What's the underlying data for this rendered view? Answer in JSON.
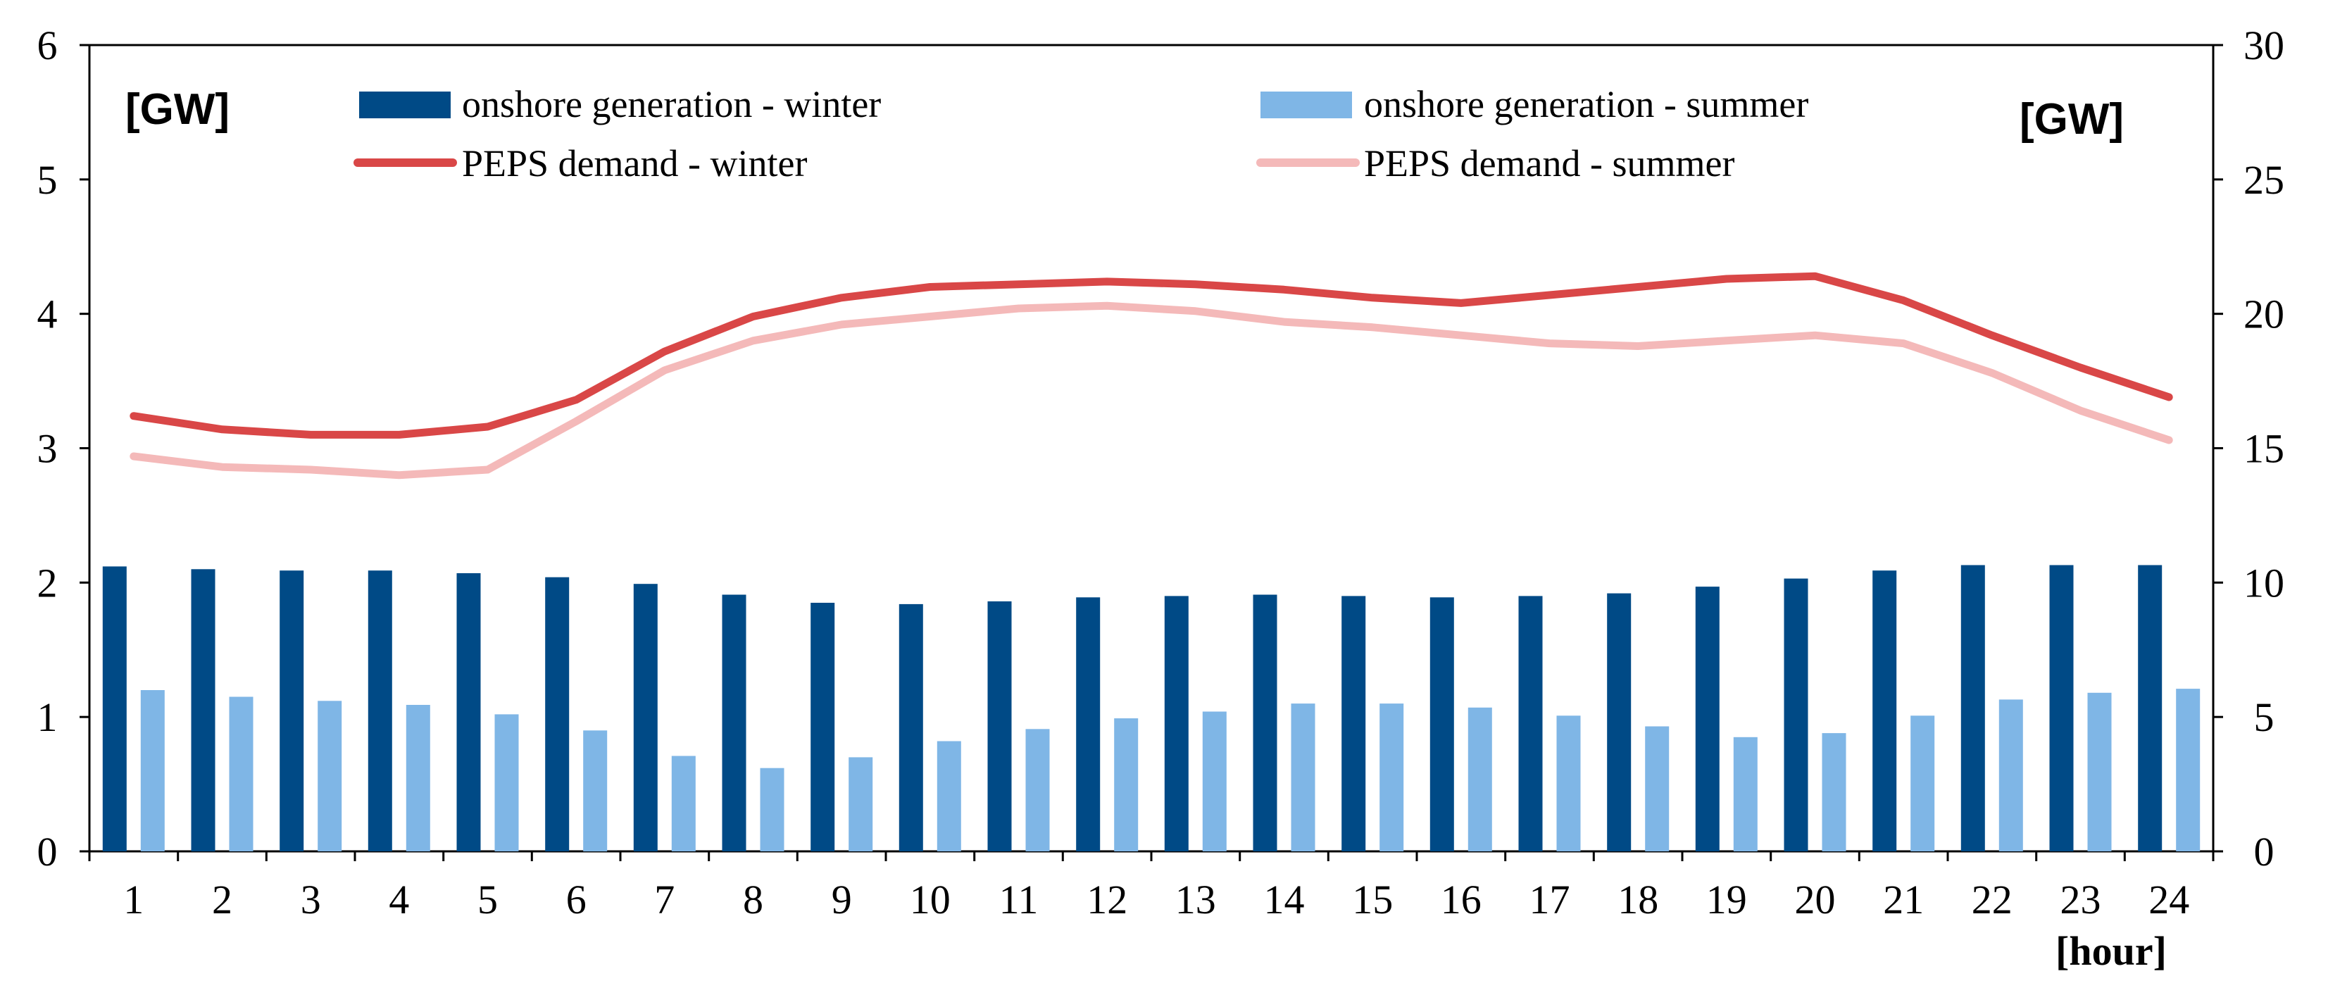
{
  "chart_data": {
    "type": "bar",
    "categories": [
      "1",
      "2",
      "3",
      "4",
      "5",
      "6",
      "7",
      "8",
      "9",
      "10",
      "11",
      "12",
      "13",
      "14",
      "15",
      "16",
      "17",
      "18",
      "19",
      "20",
      "21",
      "22",
      "23",
      "24"
    ],
    "bar_series": [
      {
        "name": "onshore generation - winter",
        "axis": "left",
        "color": "#004A86",
        "values": [
          2.12,
          2.1,
          2.09,
          2.09,
          2.07,
          2.04,
          1.99,
          1.91,
          1.85,
          1.84,
          1.86,
          1.89,
          1.9,
          1.91,
          1.9,
          1.89,
          1.9,
          1.92,
          1.97,
          2.03,
          2.09,
          2.13,
          2.13,
          2.13
        ]
      },
      {
        "name": "onshore generation - summer",
        "axis": "left",
        "color": "#7FB6E6",
        "values": [
          1.2,
          1.15,
          1.12,
          1.09,
          1.02,
          0.9,
          0.71,
          0.62,
          0.7,
          0.82,
          0.91,
          0.99,
          1.04,
          1.1,
          1.1,
          1.07,
          1.01,
          0.93,
          0.85,
          0.88,
          1.01,
          1.13,
          1.18,
          1.21
        ]
      }
    ],
    "line_series": [
      {
        "name": "PEPS demand - winter",
        "axis": "right",
        "color": "#D94747",
        "values": [
          16.2,
          15.7,
          15.5,
          15.5,
          15.8,
          16.8,
          18.6,
          19.9,
          20.6,
          21.0,
          21.1,
          21.2,
          21.1,
          20.9,
          20.6,
          20.4,
          20.7,
          21.0,
          21.3,
          21.4,
          20.5,
          19.2,
          18.0,
          16.9
        ]
      },
      {
        "name": "PEPS demand - summer",
        "axis": "right",
        "color": "#F4B9B9",
        "values": [
          14.7,
          14.3,
          14.2,
          14.0,
          14.2,
          16.0,
          17.9,
          19.0,
          19.6,
          19.9,
          20.2,
          20.3,
          20.1,
          19.7,
          19.5,
          19.2,
          18.9,
          18.8,
          19.0,
          19.2,
          18.9,
          17.8,
          16.4,
          15.3
        ]
      }
    ],
    "left_axis": {
      "ylim": [
        0,
        6
      ],
      "ticks": [
        "0",
        "1",
        "2",
        "3",
        "4",
        "5",
        "6"
      ],
      "unit": "[GW]"
    },
    "right_axis": {
      "ylim": [
        0,
        30
      ],
      "ticks": [
        "0",
        "5",
        "10",
        "15",
        "20",
        "25",
        "30"
      ],
      "unit": "[GW]"
    },
    "xlabel": "[hour]",
    "legend": {
      "winter_bar": "onshore generation - winter",
      "summer_bar": "onshore generation - summer",
      "winter_line": "PEPS demand - winter",
      "summer_line": "PEPS demand - summer"
    },
    "grid": false
  }
}
